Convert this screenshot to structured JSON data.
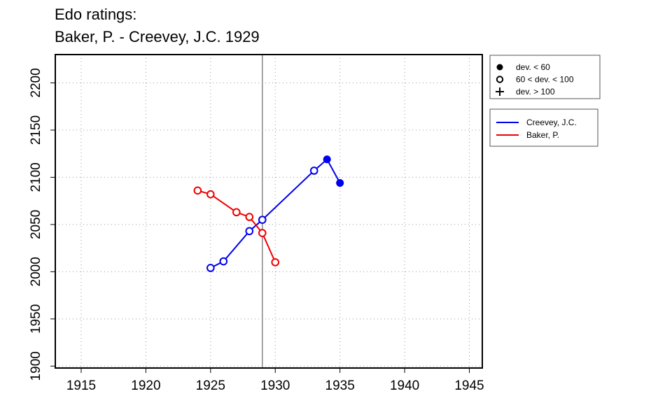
{
  "title_line1": "Edo ratings:",
  "title_line2": "Baker, P. - Creevey, J.C. 1929",
  "chart_data": {
    "type": "line",
    "title": "Edo ratings:\nBaker, P. - Creevey, J.C. 1929",
    "xlabel": "",
    "ylabel": "",
    "xlim": [
      1913,
      1946
    ],
    "ylim": [
      1898,
      2230
    ],
    "x_ticks": [
      1915,
      1920,
      1925,
      1930,
      1935,
      1940,
      1945
    ],
    "y_ticks": [
      1900,
      1950,
      2000,
      2050,
      2100,
      2150,
      2200
    ],
    "grid": true,
    "reference_line_x": 1929,
    "series": [
      {
        "name": "Creevey, J.C.",
        "color": "#0000ee",
        "points": [
          {
            "x": 1925,
            "y": 2004,
            "marker": "open"
          },
          {
            "x": 1926,
            "y": 2011,
            "marker": "open"
          },
          {
            "x": 1928,
            "y": 2043,
            "marker": "open"
          },
          {
            "x": 1929,
            "y": 2055,
            "marker": "open"
          },
          {
            "x": 1933,
            "y": 2107,
            "marker": "open"
          },
          {
            "x": 1934,
            "y": 2119,
            "marker": "filled"
          },
          {
            "x": 1935,
            "y": 2094,
            "marker": "filled"
          }
        ]
      },
      {
        "name": "Baker, P.",
        "color": "#ee0000",
        "points": [
          {
            "x": 1924,
            "y": 2086,
            "marker": "open"
          },
          {
            "x": 1925,
            "y": 2082,
            "marker": "open"
          },
          {
            "x": 1927,
            "y": 2063,
            "marker": "open"
          },
          {
            "x": 1928,
            "y": 2058,
            "marker": "open"
          },
          {
            "x": 1929,
            "y": 2041,
            "marker": "open"
          },
          {
            "x": 1930,
            "y": 2010,
            "marker": "open"
          }
        ]
      }
    ],
    "marker_legend": [
      {
        "marker": "filled",
        "label": "dev. < 60"
      },
      {
        "marker": "open",
        "label": "60 < dev. < 100"
      },
      {
        "marker": "plus",
        "label": "dev. > 100"
      }
    ],
    "legend_position": "right"
  }
}
